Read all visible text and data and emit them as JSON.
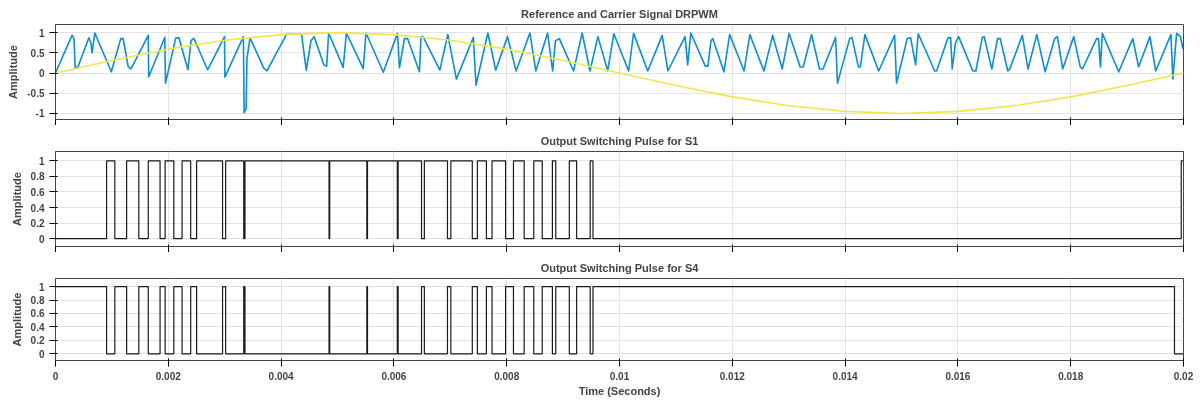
{
  "chart_data": [
    {
      "type": "line",
      "title": "Reference and Carrier Signal DRPWM",
      "ylabel": "Amplitude",
      "xlim": [
        0,
        0.02
      ],
      "xticks": [
        0,
        0.002,
        0.004,
        0.006,
        0.008,
        0.01,
        0.012,
        0.014,
        0.016,
        0.018,
        0.02
      ],
      "ylim": [
        -1.15,
        1.2
      ],
      "yticks": [
        -1,
        -0.5,
        0,
        0.5,
        1
      ],
      "grid": true,
      "tick_labels": "y",
      "series": [
        {
          "color": "#0a8fd0",
          "x": [
            0,
            0.000293,
            0.000328,
            0.000348,
            0.000397,
            0.000592,
            0.000627,
            0.000648,
            0.000697,
            0.00099,
            0.001157,
            0.001199,
            0.001289,
            0.001338,
            0.001645,
            0.001652,
            0.001937,
            0.001951,
            0.002132,
            0.002188,
            0.002348,
            0.002404,
            0.002453,
            0.002697,
            0.002997,
            0.003003,
            0.003331,
            0.003345,
            0.00338,
            0.003394,
            0.003449,
            0.003693,
            0.003749,
            0.004098,
            0.004362,
            0.004446,
            0.00453,
            0.004585,
            0.00476,
            0.004808,
            0.004843,
            0.005101,
            0.005157,
            0.005456,
            0.005505,
            0.005812,
            0.006063,
            0.006098,
            0.006188,
            0.006244,
            0.006453,
            0.006481,
            0.006516,
            0.006815,
            0.006955,
            0.007108,
            0.007408,
            0.007456,
            0.007666,
            0.007805,
            0.008014,
            0.008167,
            0.008411,
            0.008516,
            0.008725,
            0.008815,
            0.008864,
            0.008934,
            0.009185,
            0.009338,
            0.009477,
            0.009617,
            0.009791,
            0.009899,
            0.010162,
            0.01025,
            0.0105,
            0.010757,
            0.010858,
            0.011162,
            0.011209,
            0.011264,
            0.01152,
            0.011568,
            0.011622,
            0.011655,
            0.011851,
            0.011953,
            0.012209,
            0.012311,
            0.012561,
            0.012716,
            0.012885,
            0.013007,
            0.013203,
            0.013257,
            0.013405,
            0.013547,
            0.013608,
            0.013831,
            0.013865,
            0.014081,
            0.014122,
            0.014236,
            0.01427,
            0.014351,
            0.014595,
            0.014878,
            0.014912,
            0.015101,
            0.015162,
            0.01525,
            0.015297,
            0.015588,
            0.015622,
            0.015824,
            0.015872,
            0.015899,
            0.015959,
            0.016014,
            0.016264,
            0.016318,
            0.016432,
            0.016466,
            0.016601,
            0.016703,
            0.01675,
            0.016885,
            0.016919,
            0.017142,
            0.017243,
            0.017399,
            0.017547,
            0.017716,
            0.017764,
            0.017858,
            0.018054,
            0.018169,
            0.018209,
            0.018459,
            0.018493,
            0.018527,
            0.018561,
            0.018851,
            0.019101,
            0.019203,
            0.019405,
            0.019507,
            0.019777,
            0.019811,
            0.019878,
            0.019946,
            0.01999
          ],
          "values": [
            0,
            0.93,
            0.85,
            0.13,
            0.15,
            0.87,
            0.75,
            0.5,
            0.99,
            0.03,
            0.85,
            0.85,
            0.15,
            0.1,
            0.93,
            -0.1,
            0.88,
            -0.25,
            0.87,
            0.87,
            0.08,
            0.8,
            0.86,
            0.08,
            0.9,
            -0.1,
            0.9,
            -0.98,
            -0.88,
            0.35,
            0.87,
            0.12,
            0.05,
            0.96,
            0.96,
            0.07,
            0.8,
            0.9,
            0.2,
            0.17,
            0.99,
            0.14,
            0.99,
            0.11,
            0.99,
            0.02,
            0.98,
            0.13,
            0.85,
            0.85,
            0.03,
            0.9,
            0.9,
            0.07,
            0.95,
            -0.15,
            0.88,
            -0.3,
            0.99,
            0.07,
            0.9,
            0.05,
            0.99,
            0.05,
            0.99,
            0.05,
            0.8,
            0.85,
            0.05,
            0.99,
            0.05,
            0.9,
            0.05,
            0.97,
            0.05,
            0.98,
            0.05,
            0.93,
            0.05,
            0.9,
            0.2,
            0.99,
            0.17,
            0.17,
            0.8,
            0.85,
            0.03,
            0.95,
            0.05,
            0.95,
            0.05,
            0.93,
            0.1,
            0.98,
            0.15,
            0.15,
            0.95,
            0.1,
            0.1,
            0.88,
            -0.25,
            0.85,
            0.88,
            0.15,
            0.15,
            0.95,
            0.05,
            0.93,
            -0.25,
            0.85,
            0.87,
            0.2,
            0.97,
            0.05,
            0.05,
            0.87,
            0.87,
            0.1,
            0.75,
            0.9,
            0.05,
            0.05,
            0.88,
            0.9,
            0.1,
            0.85,
            0.85,
            0.05,
            0.1,
            0.93,
            0.1,
            0.95,
            0.03,
            0.85,
            0.9,
            0.1,
            0.9,
            0.15,
            0.1,
            0.85,
            0.85,
            0.15,
            0.98,
            0.03,
            0.85,
            0.15,
            0.9,
            0.05,
            0.95,
            -0.15,
            0.98,
            0.9,
            0.6
          ]
        },
        {
          "color": "#f2e64a",
          "x": [
            0,
            0.001,
            0.002,
            0.003,
            0.004,
            0.005,
            0.006,
            0.007,
            0.008,
            0.009,
            0.01,
            0.011,
            0.012,
            0.013,
            0.014,
            0.015,
            0.016,
            0.017,
            0.018,
            0.019,
            0.02
          ],
          "values": [
            0,
            0.31,
            0.59,
            0.81,
            0.95,
            1,
            0.95,
            0.81,
            0.59,
            0.31,
            0,
            -0.31,
            -0.59,
            -0.81,
            -0.95,
            -1,
            -0.95,
            -0.81,
            -0.59,
            -0.31,
            0
          ]
        }
      ]
    },
    {
      "type": "step",
      "title": "Output Switching Pulse for S1",
      "ylabel": "Amplitude",
      "xlim": [
        0,
        0.02
      ],
      "xticks": [
        0,
        0.002,
        0.004,
        0.006,
        0.008,
        0.01,
        0.012,
        0.014,
        0.016,
        0.018,
        0.02
      ],
      "ylim": [
        -0.1,
        1.12
      ],
      "yticks": [
        0,
        0.2,
        0.4,
        0.6,
        0.8,
        1
      ],
      "grid": true,
      "tick_labels": "y",
      "series": [
        {
          "color": "#1a1a1a",
          "x": [
            0,
            0.000906,
            0.001052,
            0.001261,
            0.001477,
            0.001645,
            0.001854,
            0.001944,
            0.002098,
            0.002244,
            0.002397,
            0.002502,
            0.002962,
            0.003017,
            0.003338,
            0.003359,
            0.00485,
            0.004862,
            0.00552,
            0.005532,
            0.00606,
            0.006075,
            0.00649,
            0.00654,
            0.00695,
            0.00701,
            0.00739,
            0.00748,
            0.00764,
            0.00774,
            0.00798,
            0.00812,
            0.00831,
            0.00848,
            0.00863,
            0.00881,
            0.00887,
            0.00911,
            0.00924,
            0.00948,
            0.00953,
            0.01996,
            0.02
          ],
          "values": [
            0,
            1,
            0,
            1,
            0,
            1,
            0,
            1,
            0,
            1,
            0,
            1,
            0,
            1,
            0,
            1,
            0,
            1,
            0,
            1,
            0,
            1,
            0,
            1,
            0,
            1,
            0,
            1,
            0,
            1,
            0,
            1,
            0,
            1,
            0,
            1,
            0,
            1,
            0,
            1,
            0,
            1,
            1
          ]
        }
      ]
    },
    {
      "type": "step",
      "title": "Output Switching Pulse for S4",
      "ylabel": "Amplitude",
      "xlabel": "Time (Seconds)",
      "xlim": [
        0,
        0.02
      ],
      "xticks": [
        0,
        0.002,
        0.004,
        0.006,
        0.008,
        0.01,
        0.012,
        0.014,
        0.016,
        0.018,
        0.02
      ],
      "ylim": [
        -0.1,
        1.12
      ],
      "yticks": [
        0,
        0.2,
        0.4,
        0.6,
        0.8,
        1
      ],
      "grid": true,
      "series": [
        {
          "color": "#1a1a1a",
          "x": [
            0,
            0.000906,
            0.001052,
            0.001261,
            0.001477,
            0.001645,
            0.001854,
            0.001944,
            0.002098,
            0.002244,
            0.002397,
            0.002502,
            0.002962,
            0.003017,
            0.003338,
            0.003359,
            0.00485,
            0.004862,
            0.00552,
            0.005532,
            0.00606,
            0.006075,
            0.00649,
            0.00654,
            0.00695,
            0.00701,
            0.00739,
            0.00748,
            0.00764,
            0.00774,
            0.00798,
            0.00812,
            0.00831,
            0.00848,
            0.00863,
            0.00881,
            0.00887,
            0.00911,
            0.00924,
            0.00948,
            0.00953,
            0.01984,
            0.02
          ],
          "values": [
            1,
            0,
            1,
            0,
            1,
            0,
            1,
            0,
            1,
            0,
            1,
            0,
            1,
            0,
            1,
            0,
            1,
            0,
            1,
            0,
            1,
            0,
            1,
            0,
            1,
            0,
            1,
            0,
            1,
            0,
            1,
            0,
            1,
            0,
            1,
            0,
            1,
            0,
            1,
            0,
            1,
            0,
            0
          ]
        }
      ]
    }
  ]
}
